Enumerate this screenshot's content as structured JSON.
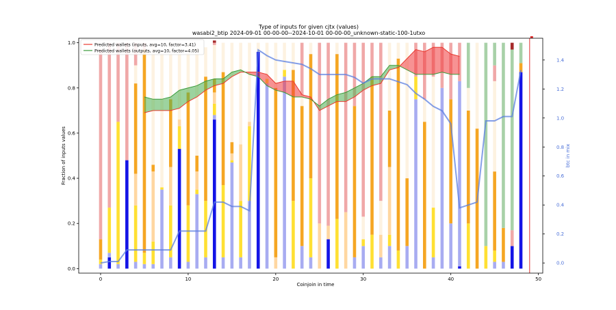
{
  "chart_data": {
    "type": "bar",
    "title_line1": "Type of inputs for given cjtx (values)",
    "title_line2": "wasabi2_btip 2024-09-01 00-00-00--2024-10-01 00-00-00_unknown-static-100-1utxo",
    "xlabel": "Coinjoin in time",
    "ylabel_left": "Fraction of inputs values",
    "ylabel_right": "btc in mix",
    "xlim": [
      -2.5,
      50.5
    ],
    "ylim_left": [
      -0.02,
      1.02
    ],
    "ylim_right": [
      -0.07,
      1.55
    ],
    "xticks": [
      0,
      10,
      20,
      30,
      40,
      50
    ],
    "yticks_left": [
      0.0,
      0.2,
      0.4,
      0.6,
      0.8,
      1.0
    ],
    "yticks_right": [
      0.0,
      0.2,
      0.4,
      0.6,
      0.8,
      1.0,
      1.2,
      1.4
    ],
    "legend_position": "upper left",
    "legend": [
      {
        "name": "Predicted wallets (inputs, avg=10, factor=3.41)",
        "color": "#e8392f"
      },
      {
        "name": "Predicted wallets (outputs, avg=10, factor=4.05)",
        "color": "#3a9a3a"
      }
    ],
    "stack_colors": [
      "#1414e6",
      "#a3a8f0",
      "#ffe033",
      "#ffd59c",
      "#f5a623",
      "#fdf1df",
      "#efa3a3",
      "#a3cfa3",
      "#a52a2a"
    ],
    "bars": [
      [
        0.0,
        [
          0,
          0.02,
          0.02,
          0.0,
          0.09,
          0.0,
          0.84,
          0,
          0
        ]
      ],
      [
        1.0,
        [
          0.05,
          0.02,
          0.2,
          0.0,
          0.0,
          0.0,
          0.73,
          0,
          0
        ]
      ],
      [
        2.0,
        [
          0,
          0.02,
          0.63,
          0.0,
          0.0,
          0.0,
          0.35,
          0,
          0
        ]
      ],
      [
        3.0,
        [
          0.48,
          0.0,
          0.0,
          0.0,
          0.0,
          0.0,
          0.52,
          0,
          0
        ]
      ],
      [
        4.0,
        [
          0,
          0.03,
          0.25,
          0.14,
          0.4,
          0.08,
          0.1,
          0,
          0
        ]
      ],
      [
        5.0,
        [
          0,
          0.02,
          0.05,
          0.0,
          0.9,
          0.0,
          0.03,
          0,
          0
        ]
      ],
      [
        6.0,
        [
          0,
          0.02,
          0.1,
          0.31,
          0.03,
          0.54,
          0,
          0,
          0
        ]
      ],
      [
        7.0,
        [
          0,
          0.35,
          0.01,
          0.0,
          0.0,
          0.6,
          0,
          0,
          0
        ]
      ],
      [
        8.0,
        [
          0,
          0.05,
          0.23,
          0.17,
          0.3,
          0.25,
          0,
          0,
          0
        ]
      ],
      [
        9.0,
        [
          0.53,
          0.0,
          0.1,
          0.03,
          0.0,
          0.34,
          0,
          0,
          0
        ]
      ],
      [
        10.0,
        [
          0,
          0.03,
          0.25,
          0.0,
          0.5,
          0.22,
          0,
          0,
          0
        ]
      ],
      [
        11.0,
        [
          0,
          0.33,
          0.02,
          0.08,
          0.07,
          0.48,
          0,
          0,
          0
        ]
      ],
      [
        12.0,
        [
          0,
          0.05,
          0.25,
          0.0,
          0.55,
          0.13,
          0,
          0,
          0
        ]
      ],
      [
        13.0,
        [
          0.66,
          0.02,
          0.05,
          0.05,
          0.06,
          0.15,
          0.01,
          0,
          0.01
        ]
      ],
      [
        14.0,
        [
          0,
          0.05,
          0.32,
          0.0,
          0.5,
          0.13,
          0,
          0,
          0
        ]
      ],
      [
        15.0,
        [
          0,
          0.47,
          0.01,
          0.03,
          0.05,
          0.44,
          0,
          0,
          0
        ]
      ],
      [
        16.0,
        [
          0,
          0.05,
          0.25,
          0.25,
          0.0,
          0.45,
          0,
          0,
          0
        ]
      ],
      [
        17.0,
        [
          0,
          0.3,
          0.33,
          0.02,
          0.0,
          0.35,
          0,
          0,
          0
        ]
      ],
      [
        18.0,
        [
          0.96,
          0.0,
          0.0,
          0.0,
          0.0,
          0.04,
          0,
          0,
          0
        ]
      ],
      [
        19.0,
        [
          0,
          0.82,
          0.02,
          0.0,
          0.0,
          0.16,
          0,
          0,
          0
        ]
      ],
      [
        20.0,
        [
          0,
          0.0,
          0.0,
          0.05,
          0.75,
          0.2,
          0,
          0,
          0
        ]
      ],
      [
        21.0,
        [
          0,
          0.85,
          0.03,
          0.0,
          0.0,
          0.12,
          0,
          0,
          0
        ]
      ],
      [
        22.0,
        [
          0,
          0.0,
          0.3,
          0.0,
          0.58,
          0.12,
          0,
          0,
          0
        ]
      ],
      [
        23.0,
        [
          0,
          0.1,
          0.0,
          0.0,
          0.62,
          0.05,
          0.23,
          0,
          0
        ]
      ],
      [
        24.0,
        [
          0,
          0.05,
          0.35,
          0.0,
          0.55,
          0.05,
          0,
          0,
          0
        ]
      ],
      [
        25.0,
        [
          0,
          0.0,
          0.0,
          0.2,
          0.0,
          0.0,
          0.8,
          0,
          0
        ]
      ],
      [
        26.0,
        [
          0.13,
          0.0,
          0.0,
          0.06,
          0.0,
          0.0,
          0.81,
          0,
          0
        ]
      ],
      [
        27.0,
        [
          0,
          0.0,
          0.22,
          0.0,
          0.73,
          0.05,
          0,
          0,
          0
        ]
      ],
      [
        28.0,
        [
          0,
          0.0,
          0.0,
          0.25,
          0.0,
          0.0,
          0.75,
          0,
          0
        ]
      ],
      [
        29.0,
        [
          0,
          0.05,
          0.0,
          0.0,
          0.67,
          0.0,
          0.28,
          0,
          0
        ]
      ],
      [
        30.0,
        [
          0,
          0.1,
          0.03,
          0.0,
          0.0,
          0.1,
          0.77,
          0,
          0
        ]
      ],
      [
        31.0,
        [
          0,
          0.0,
          0.15,
          0.0,
          0.7,
          0.0,
          0.15,
          0,
          0
        ]
      ],
      [
        32.0,
        [
          0,
          0.05,
          0.0,
          0.1,
          0.0,
          0.15,
          0.7,
          0,
          0
        ]
      ],
      [
        33.0,
        [
          0,
          0.1,
          0.05,
          0.3,
          0.25,
          0.3,
          0.0,
          0,
          0
        ]
      ],
      [
        34.0,
        [
          0,
          0.0,
          0.08,
          0.0,
          0.85,
          0.07,
          0.0,
          0,
          0
        ]
      ],
      [
        35.0,
        [
          0,
          0.1,
          0.0,
          0.0,
          0.3,
          0.6,
          0.0,
          0,
          0
        ]
      ],
      [
        36.0,
        [
          0,
          0.75,
          0.1,
          0.0,
          0.0,
          0.0,
          0.15,
          0,
          0
        ]
      ],
      [
        37.0,
        [
          0,
          0.0,
          0.0,
          0.0,
          0.65,
          0.1,
          0.25,
          0,
          0
        ]
      ],
      [
        38.0,
        [
          0,
          0.05,
          0.22,
          0.0,
          0.0,
          0.58,
          0.15,
          0,
          0
        ]
      ],
      [
        39.0,
        [
          0,
          0.8,
          0.0,
          0.0,
          0.0,
          0.0,
          0.2,
          0,
          0
        ]
      ],
      [
        40.0,
        [
          0,
          0.2,
          0.0,
          0.0,
          0.55,
          0.0,
          0.25,
          0,
          0
        ]
      ],
      [
        41.0,
        [
          0.01,
          0.82,
          0.0,
          0.0,
          0.0,
          0.0,
          0.17,
          0,
          0
        ]
      ],
      [
        42.0,
        [
          0,
          0.0,
          0.2,
          0.0,
          0.5,
          0.1,
          0.0,
          0.2,
          0
        ]
      ],
      [
        43.0,
        [
          0,
          0.0,
          0.0,
          0.0,
          0.62,
          0.38,
          0,
          0,
          0
        ]
      ],
      [
        44.0,
        [
          0,
          0.0,
          0.1,
          0.0,
          0.0,
          0.0,
          0.0,
          0.9,
          0
        ]
      ],
      [
        45.0,
        [
          0,
          0.03,
          0.05,
          0.0,
          0.35,
          0.4,
          0.07,
          0.1,
          0
        ]
      ],
      [
        46.0,
        [
          0,
          0.03,
          0.0,
          0.0,
          0.15,
          0.0,
          0.0,
          0.82,
          0
        ]
      ],
      [
        47.0,
        [
          0.1,
          0.0,
          0.0,
          0.0,
          0.0,
          0.0,
          0.07,
          0.8,
          0.03
        ]
      ],
      [
        48.0,
        [
          0.87,
          0.0,
          0.0,
          0.0,
          0.04,
          0.0,
          0.0,
          0.09,
          0
        ]
      ]
    ],
    "predicted_inputs": [
      [
        5,
        0.69
      ],
      [
        6,
        0.7
      ],
      [
        7,
        0.7
      ],
      [
        8,
        0.7
      ],
      [
        9,
        0.71
      ],
      [
        10,
        0.74
      ],
      [
        11,
        0.76
      ],
      [
        12,
        0.79
      ],
      [
        13,
        0.81
      ],
      [
        14,
        0.82
      ],
      [
        15,
        0.85
      ],
      [
        16,
        0.87
      ],
      [
        17,
        0.87
      ],
      [
        18,
        0.87
      ],
      [
        19,
        0.86
      ],
      [
        20,
        0.82
      ],
      [
        21,
        0.83
      ],
      [
        22,
        0.83
      ],
      [
        23,
        0.77
      ],
      [
        24,
        0.76
      ],
      [
        25,
        0.7
      ],
      [
        26,
        0.72
      ],
      [
        27,
        0.74
      ],
      [
        28,
        0.74
      ],
      [
        29,
        0.76
      ],
      [
        30,
        0.79
      ],
      [
        31,
        0.81
      ],
      [
        32,
        0.82
      ],
      [
        33,
        0.88
      ],
      [
        34,
        0.89
      ],
      [
        35,
        0.93
      ],
      [
        36,
        0.97
      ],
      [
        37,
        0.96
      ],
      [
        38,
        0.98
      ],
      [
        39,
        0.98
      ],
      [
        40,
        0.95
      ],
      [
        41,
        0.94
      ]
    ],
    "predicted_outputs": [
      [
        5,
        0.76
      ],
      [
        6,
        0.75
      ],
      [
        7,
        0.75
      ],
      [
        8,
        0.76
      ],
      [
        9,
        0.79
      ],
      [
        10,
        0.8
      ],
      [
        11,
        0.81
      ],
      [
        12,
        0.83
      ],
      [
        13,
        0.84
      ],
      [
        14,
        0.84
      ],
      [
        15,
        0.87
      ],
      [
        16,
        0.88
      ],
      [
        17,
        0.86
      ],
      [
        18,
        0.85
      ],
      [
        19,
        0.81
      ],
      [
        20,
        0.79
      ],
      [
        21,
        0.78
      ],
      [
        22,
        0.76
      ],
      [
        23,
        0.76
      ],
      [
        24,
        0.75
      ],
      [
        25,
        0.72
      ],
      [
        26,
        0.75
      ],
      [
        27,
        0.77
      ],
      [
        28,
        0.78
      ],
      [
        29,
        0.8
      ],
      [
        30,
        0.82
      ],
      [
        31,
        0.85
      ],
      [
        32,
        0.85
      ],
      [
        33,
        0.9
      ],
      [
        34,
        0.9
      ],
      [
        35,
        0.88
      ],
      [
        36,
        0.86
      ],
      [
        37,
        0.86
      ],
      [
        38,
        0.86
      ],
      [
        39,
        0.87
      ],
      [
        40,
        0.86
      ],
      [
        41,
        0.86
      ]
    ],
    "btc_in_mix": [
      [
        0,
        0.0
      ],
      [
        1,
        0.01
      ],
      [
        2,
        0.01
      ],
      [
        3,
        0.09
      ],
      [
        4,
        0.09
      ],
      [
        5,
        0.09
      ],
      [
        6,
        0.09
      ],
      [
        7,
        0.09
      ],
      [
        8,
        0.09
      ],
      [
        9,
        0.22
      ],
      [
        10,
        0.22
      ],
      [
        11,
        0.22
      ],
      [
        12,
        0.22
      ],
      [
        13,
        0.42
      ],
      [
        14,
        0.42
      ],
      [
        15,
        0.39
      ],
      [
        16,
        0.39
      ],
      [
        17,
        0.36
      ],
      [
        18,
        1.47
      ],
      [
        19,
        1.43
      ],
      [
        20,
        1.4
      ],
      [
        21,
        1.39
      ],
      [
        22,
        1.38
      ],
      [
        23,
        1.37
      ],
      [
        24,
        1.34
      ],
      [
        25,
        1.3
      ],
      [
        26,
        1.3
      ],
      [
        27,
        1.3
      ],
      [
        28,
        1.3
      ],
      [
        29,
        1.28
      ],
      [
        30,
        1.24
      ],
      [
        31,
        1.27
      ],
      [
        32,
        1.27
      ],
      [
        33,
        1.27
      ],
      [
        34,
        1.25
      ],
      [
        35,
        1.23
      ],
      [
        36,
        1.17
      ],
      [
        37,
        1.13
      ],
      [
        38,
        1.08
      ],
      [
        39,
        1.05
      ],
      [
        40,
        0.96
      ],
      [
        41,
        0.38
      ],
      [
        42,
        0.4
      ],
      [
        43,
        0.42
      ],
      [
        44,
        0.98
      ],
      [
        45,
        0.98
      ],
      [
        46,
        1.01
      ],
      [
        47,
        1.01
      ],
      [
        48,
        1.33
      ]
    ],
    "right_edge_markers": [
      49.0
    ]
  }
}
